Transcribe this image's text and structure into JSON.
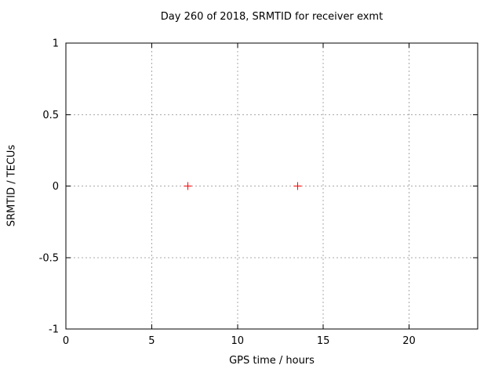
{
  "figure": {
    "title": "Day 260 of 2018, SRMTID for receiver exmt"
  },
  "colors": {
    "background": "#ffffff",
    "axis": "#000000",
    "grid": "#a8a8a8",
    "text": "#000000",
    "marker": "#ff0000"
  },
  "chart_data": {
    "type": "scatter",
    "title": "Day 260 of 2018, SRMTID for receiver exmt",
    "xlabel": "GPS time / hours",
    "ylabel": "SRMTID / TECUs",
    "xlim": [
      0,
      24
    ],
    "ylim": [
      -1,
      1
    ],
    "xticks": [
      0,
      5,
      10,
      15,
      20
    ],
    "yticks": [
      -1,
      -0.5,
      0,
      0.5,
      1
    ],
    "grid": true,
    "grid_style": "dashed",
    "legend_position": "none",
    "series": [
      {
        "marker": "plus",
        "color": "#ff0000",
        "points": [
          [
            7.1,
            0
          ],
          [
            13.5,
            0
          ]
        ]
      }
    ]
  }
}
